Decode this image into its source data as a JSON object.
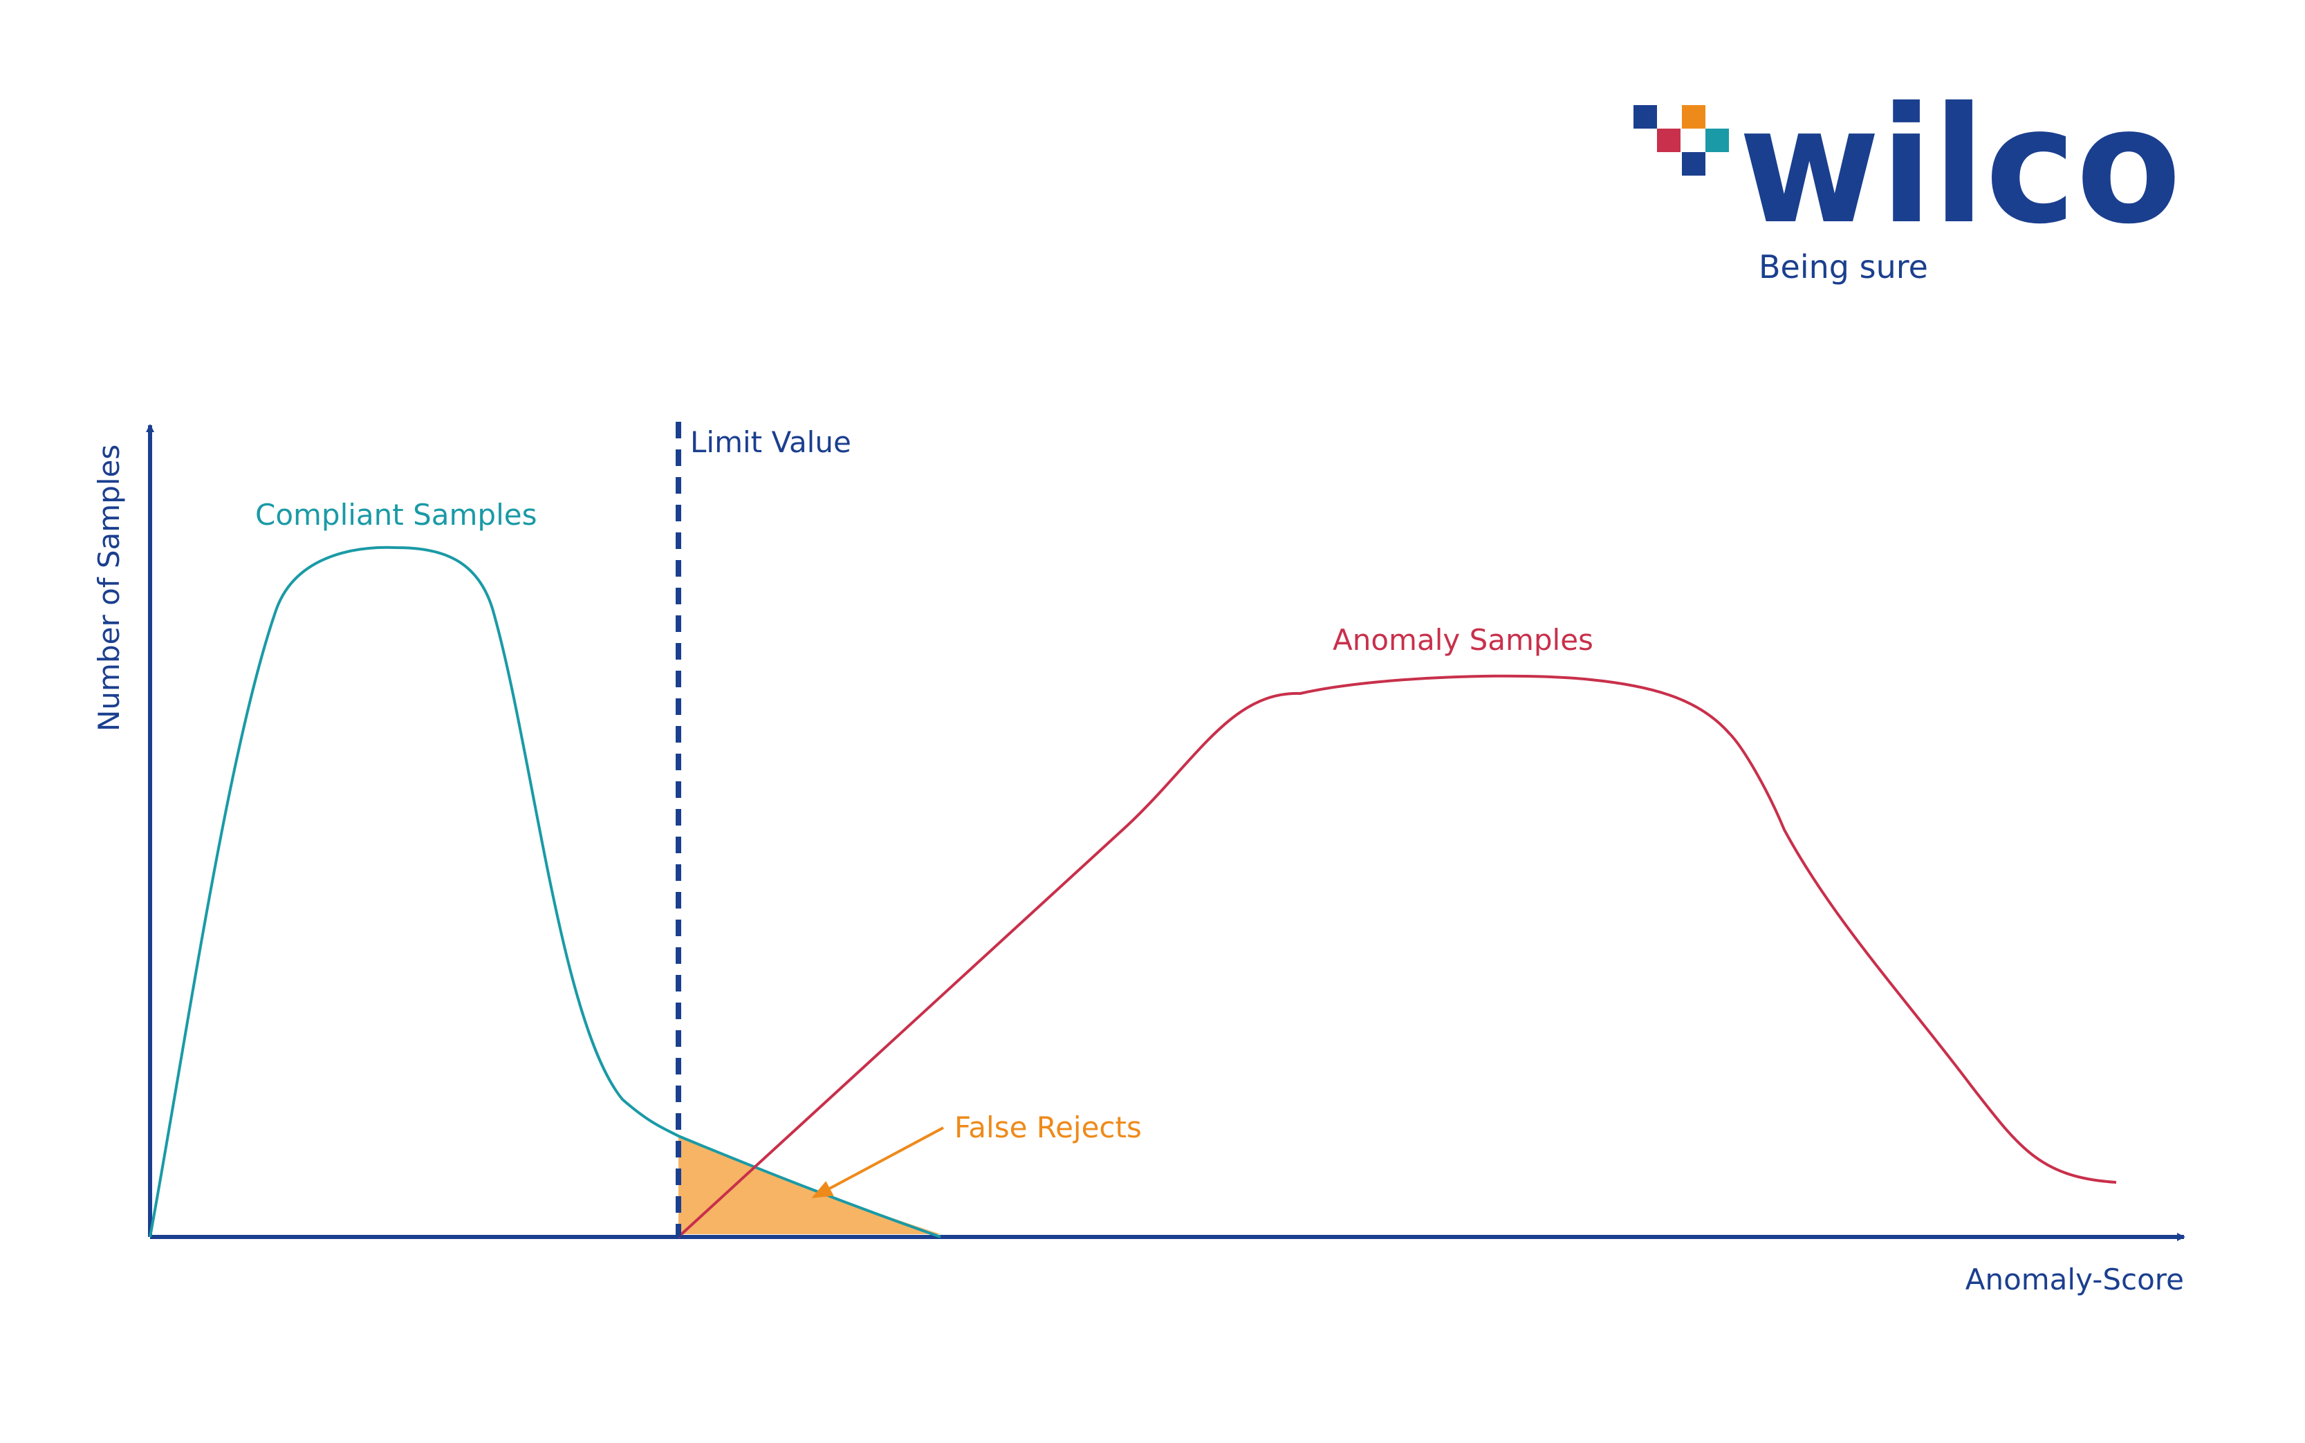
{
  "logo": {
    "wordmark": "wilco",
    "tagline": "Being sure"
  },
  "diagram": {
    "y_axis_label": "Number of Samples",
    "x_axis_label": "Anomaly-Score",
    "limit_label": "Limit Value",
    "compliant_label": "Compliant Samples",
    "anomaly_label": "Anomaly Samples",
    "false_rejects_label": "False Rejects"
  },
  "colors": {
    "navy": "#1b3f8f",
    "teal": "#1a9aa6",
    "crimson": "#c8304b",
    "orange": "#ee8a1a",
    "fill_orange": "#f6b464"
  }
}
